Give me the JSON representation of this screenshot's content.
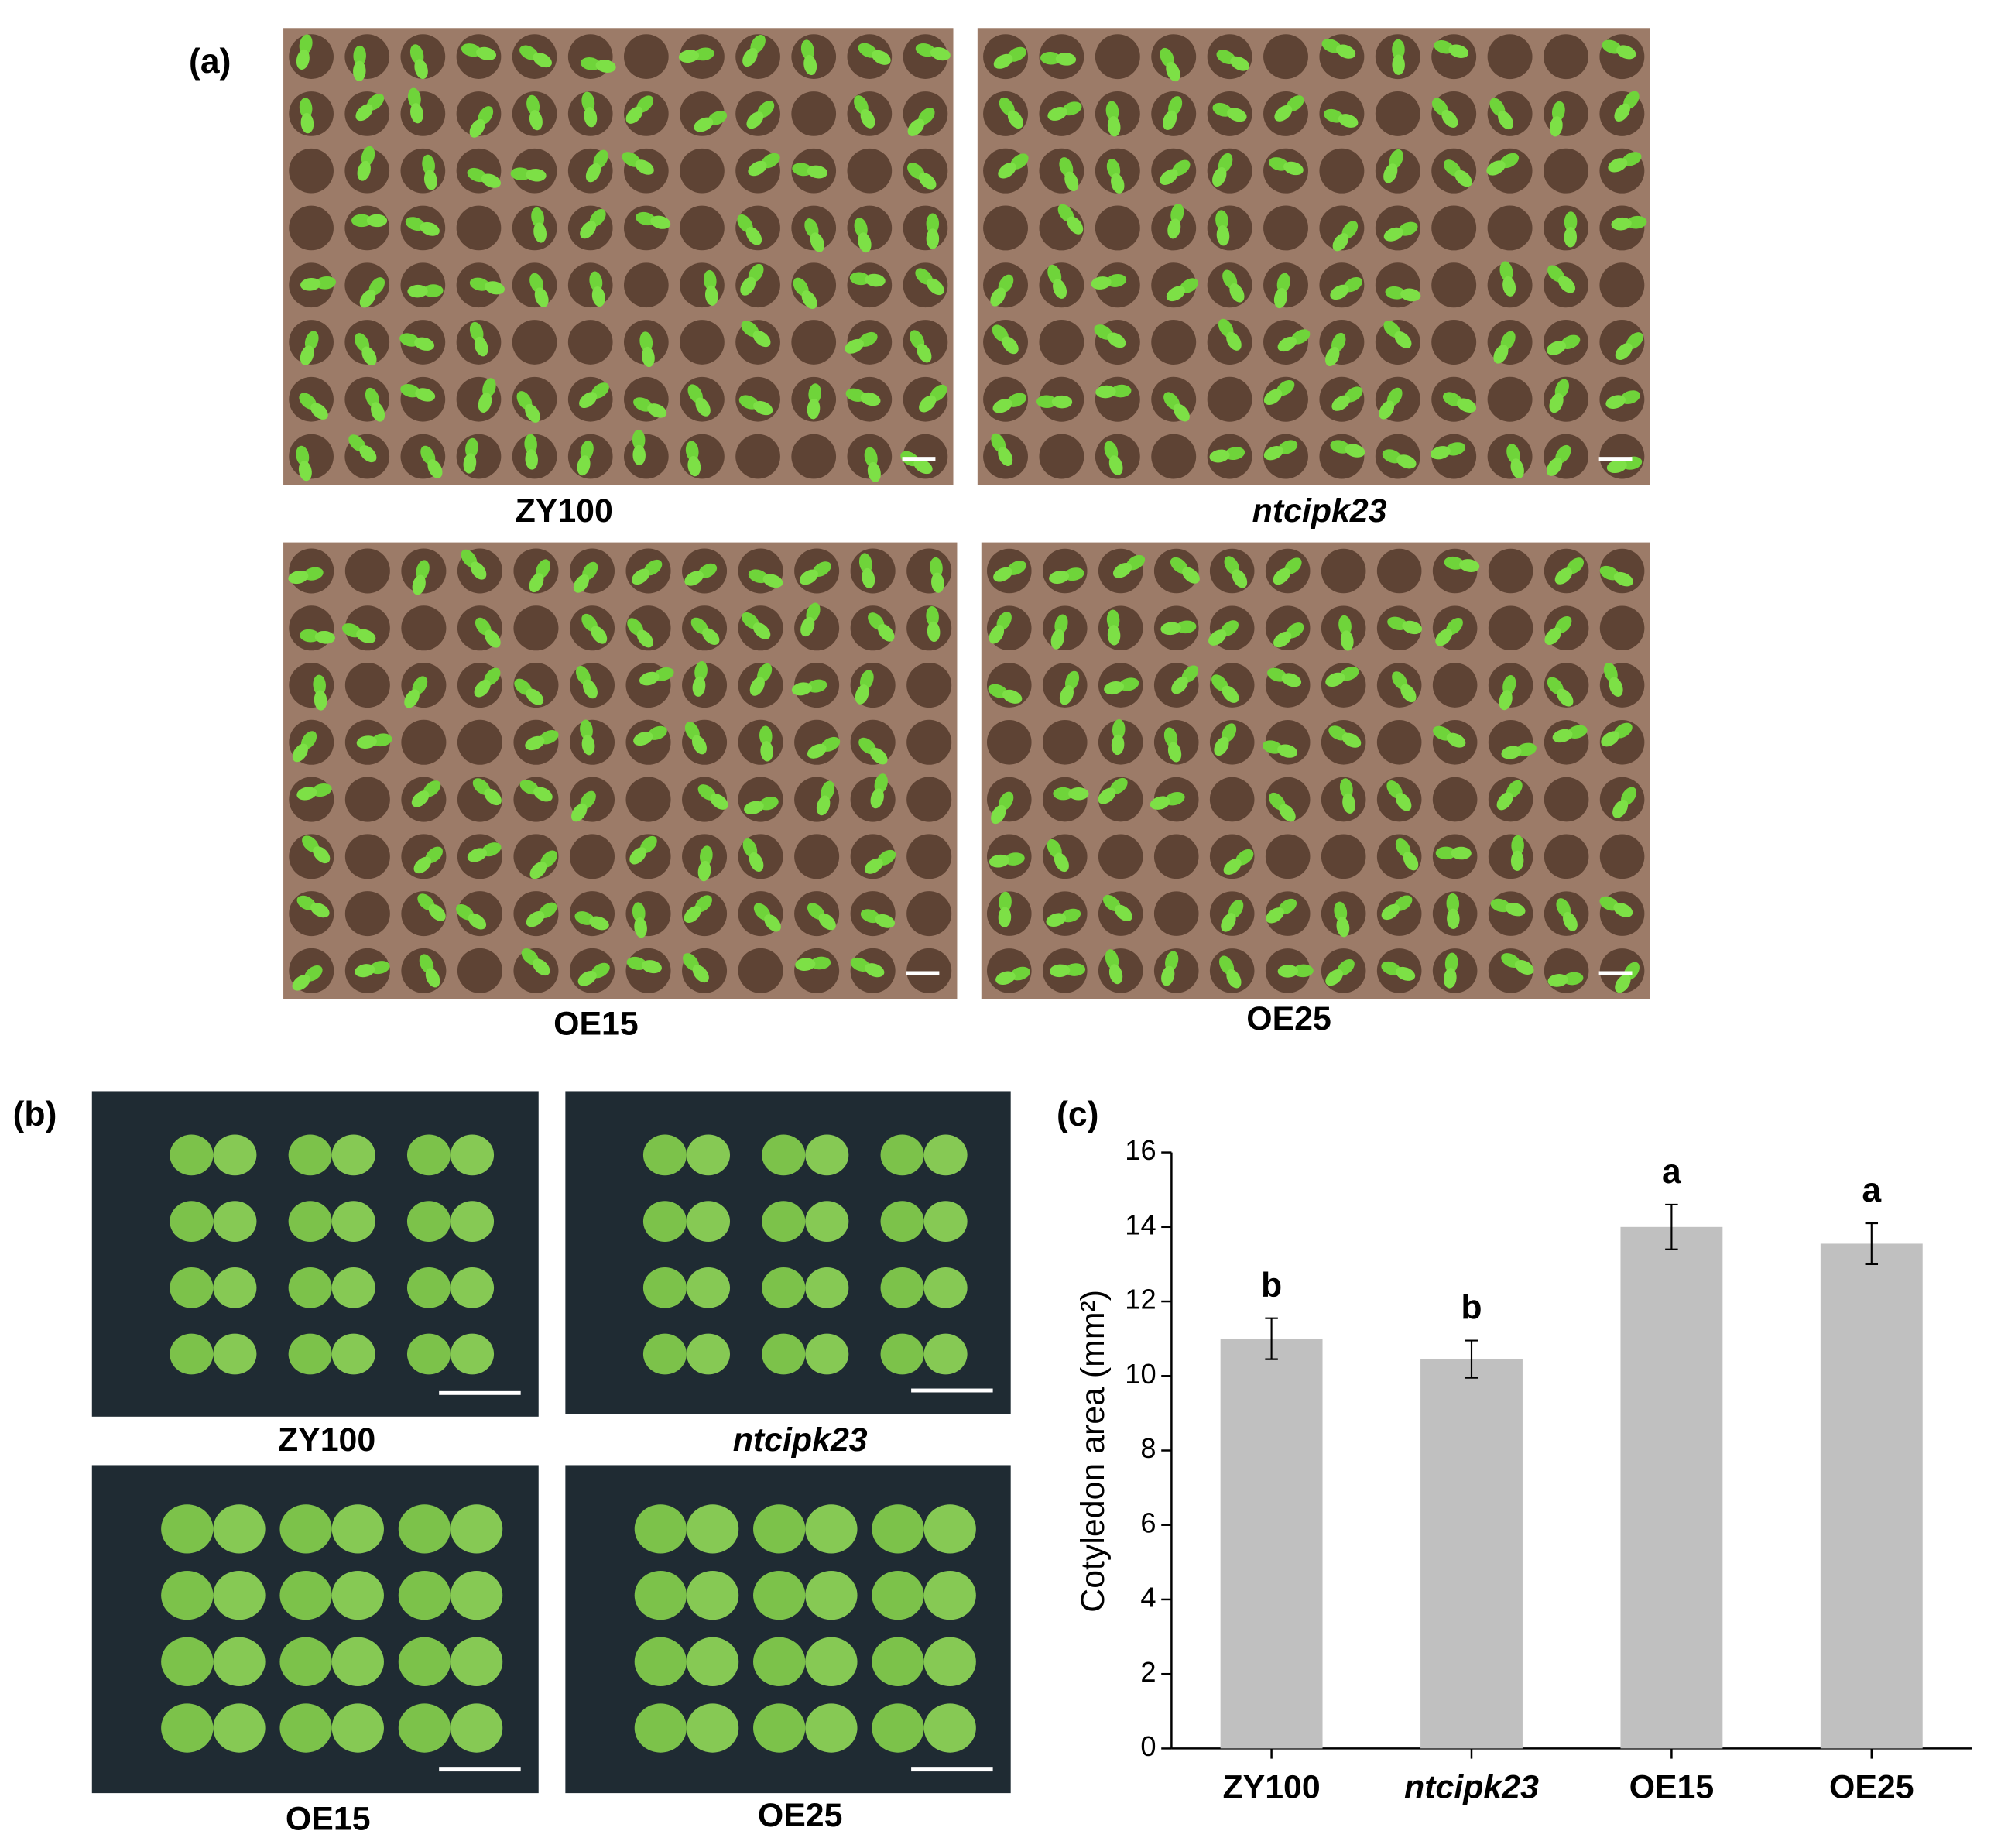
{
  "panel_a": {
    "label": "(a)",
    "captions": [
      "ZY100",
      "ntcipk23",
      "OE15",
      "OE25"
    ]
  },
  "panel_b": {
    "label": "(b)",
    "captions": [
      "ZY100",
      "ntcipk23",
      "OE15",
      "OE25"
    ]
  },
  "chart_data": {
    "type": "bar",
    "panel_label": "(c)",
    "ylabel": "Cotyledon area (mm²)",
    "categories": [
      "ZY100",
      "ntcipk23",
      "OE15",
      "OE25"
    ],
    "values": [
      11.0,
      10.45,
      14.0,
      13.55
    ],
    "errors": [
      0.55,
      0.5,
      0.6,
      0.55
    ],
    "annotations": [
      "b",
      "b",
      "a",
      "a"
    ],
    "color": "#c0c0c0",
    "ylim": [
      0,
      16
    ],
    "yticks": [
      0,
      2,
      4,
      6,
      8,
      10,
      12,
      14,
      16
    ]
  }
}
